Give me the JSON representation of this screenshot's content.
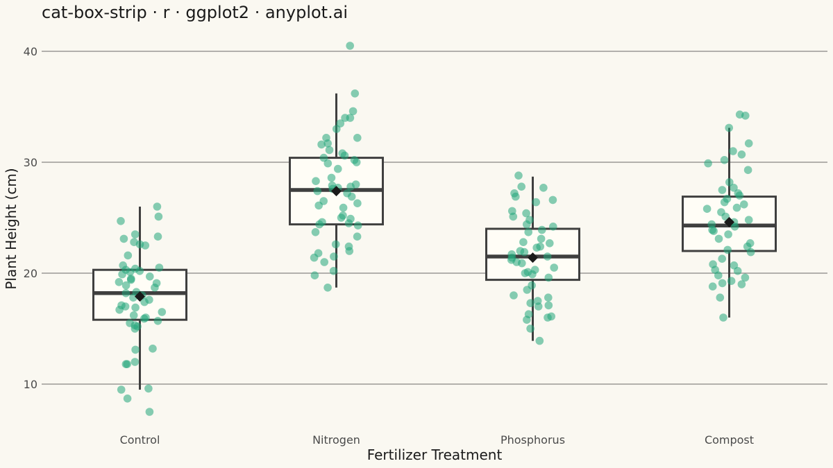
{
  "chart_data": {
    "type": "box-strip",
    "title": "cat-box-strip · r · ggplot2 · anyplot.ai",
    "xlabel": "Fertilizer Treatment",
    "ylabel": "Plant Height (cm)",
    "ylim": [
      7,
      41
    ],
    "yticks": [
      10,
      20,
      30,
      40
    ],
    "grid": "horizontal",
    "colors": {
      "background": "#FAF8F1",
      "box_fill": "#FFFDF6",
      "box_stroke": "#3F3F3F",
      "points": "#22A67A",
      "mean_marker": "#1A1A1A"
    },
    "categories": [
      "Control",
      "Nitrogen",
      "Phosphorus",
      "Compost"
    ],
    "boxes": [
      {
        "category": "Control",
        "lower_whisker": 9.5,
        "q1": 15.8,
        "median": 18.2,
        "q3": 20.3,
        "upper_whisker": 26.0,
        "mean": 17.9
      },
      {
        "category": "Nitrogen",
        "lower_whisker": 18.7,
        "q1": 24.4,
        "median": 27.5,
        "q3": 30.4,
        "upper_whisker": 36.2,
        "mean": 27.4
      },
      {
        "category": "Phosphorus",
        "lower_whisker": 13.9,
        "q1": 19.4,
        "median": 21.5,
        "q3": 24.0,
        "upper_whisker": 28.7,
        "mean": 21.4
      },
      {
        "category": "Compost",
        "lower_whisker": 16.0,
        "q1": 22.0,
        "median": 24.3,
        "q3": 26.9,
        "upper_whisker": 33.1,
        "mean": 24.6
      }
    ],
    "points": [
      {
        "category": "Control",
        "values": [
          26.0,
          25.1,
          24.7,
          23.5,
          23.3,
          23.1,
          22.8,
          22.6,
          22.5,
          21.6,
          20.7,
          20.5,
          20.4,
          20.3,
          20.2,
          20.1,
          19.9,
          19.7,
          19.5,
          19.4,
          19.2,
          19.1,
          18.9,
          18.7,
          18.3,
          18.2,
          18.0,
          17.8,
          17.6,
          17.4,
          17.1,
          17.0,
          16.9,
          16.7,
          16.5,
          16.2,
          16.0,
          15.9,
          15.7,
          15.5,
          15.3,
          15.2,
          15.0,
          13.2,
          13.1,
          12.0,
          11.8,
          11.8,
          9.6,
          9.5,
          8.7,
          7.5
        ]
      },
      {
        "category": "Nitrogen",
        "values": [
          40.5,
          36.2,
          34.6,
          34.0,
          34.0,
          33.5,
          33.0,
          32.2,
          32.2,
          31.7,
          31.6,
          31.1,
          30.8,
          30.6,
          30.4,
          30.2,
          30.0,
          29.9,
          29.4,
          28.6,
          28.3,
          28.0,
          27.9,
          27.8,
          27.7,
          27.6,
          27.4,
          27.2,
          26.9,
          26.5,
          26.3,
          26.1,
          25.9,
          25.2,
          25.0,
          24.9,
          24.6,
          24.5,
          24.4,
          24.3,
          23.7,
          23.3,
          22.6,
          22.4,
          22.0,
          21.8,
          21.5,
          21.4,
          21.0,
          20.2,
          19.8,
          18.7
        ]
      },
      {
        "category": "Phosphorus",
        "values": [
          28.8,
          27.8,
          27.7,
          27.2,
          26.9,
          26.6,
          26.4,
          25.6,
          25.4,
          25.1,
          24.8,
          24.4,
          24.2,
          23.9,
          23.7,
          23.1,
          22.8,
          22.7,
          22.4,
          22.3,
          22.0,
          21.9,
          21.7,
          21.5,
          21.4,
          21.2,
          21.0,
          20.9,
          20.5,
          20.3,
          20.1,
          20.0,
          19.9,
          19.6,
          18.9,
          18.5,
          18.0,
          17.8,
          17.5,
          17.3,
          17.1,
          17.0,
          16.3,
          16.1,
          16.0,
          15.8,
          15.0,
          13.9
        ]
      },
      {
        "category": "Compost",
        "values": [
          34.3,
          34.2,
          33.1,
          31.7,
          31.0,
          30.7,
          30.2,
          29.9,
          29.3,
          28.2,
          27.7,
          27.5,
          27.2,
          27.0,
          26.7,
          26.4,
          26.2,
          25.9,
          25.8,
          25.5,
          25.1,
          24.8,
          24.6,
          24.4,
          24.2,
          23.9,
          23.8,
          23.5,
          23.1,
          22.7,
          22.4,
          22.1,
          21.9,
          21.3,
          20.8,
          20.7,
          20.3,
          20.2,
          19.8,
          19.6,
          19.3,
          19.1,
          19.0,
          18.8,
          17.8,
          16.0
        ]
      }
    ]
  }
}
